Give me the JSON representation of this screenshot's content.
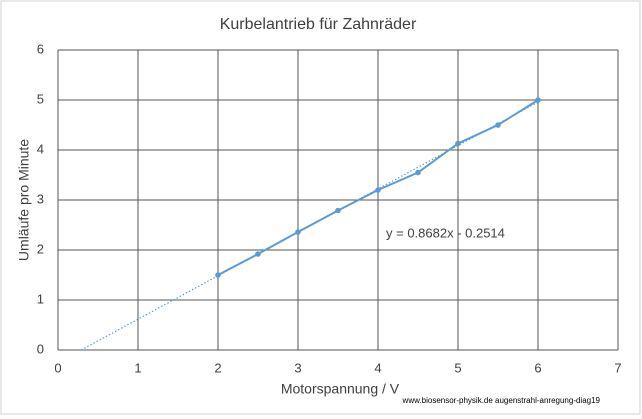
{
  "chart_data": {
    "type": "line",
    "title": "Kurbelantrieb für Zahnräder",
    "x_label": "Motorspannung / V",
    "y_label": "Umläufe pro Minute",
    "x": [
      2,
      2.5,
      3,
      3.5,
      4,
      4.5,
      5,
      5.5,
      6
    ],
    "series": [
      {
        "name": "Umläufe pro Minute",
        "color": "#5b9bd5",
        "values": [
          1.5,
          1.92,
          2.36,
          2.79,
          3.2,
          3.55,
          4.13,
          4.5,
          5.0
        ]
      }
    ],
    "trendline": {
      "slope": 0.8682,
      "intercept": -0.2514,
      "label": "y = 0.8682x - 0.2514"
    },
    "xlim": [
      0,
      7
    ],
    "xticks": [
      0,
      1,
      2,
      3,
      4,
      5,
      6,
      7
    ],
    "ylim": [
      0,
      6
    ],
    "yticks": [
      0,
      1,
      2,
      3,
      4,
      5,
      6
    ],
    "grid": true,
    "source": "www.biosensor-physik.de augenstrahl-anregung-diag19"
  }
}
